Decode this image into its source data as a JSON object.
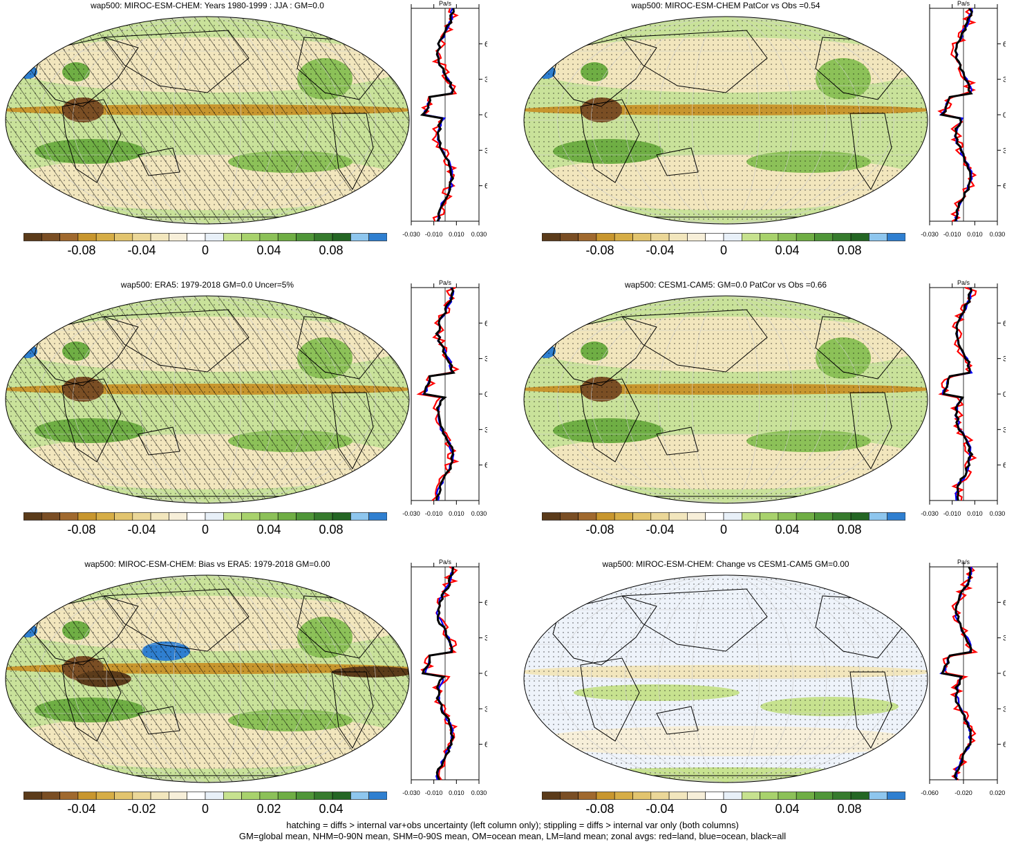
{
  "variable": "wap500",
  "panels": [
    {
      "title": "wap500: MIROC-ESM-CHEM: Years 1980-1999 : JJA : GM=0.0",
      "hatching": true,
      "cbar_labels": [
        "-0.08",
        "-0.04",
        "0",
        "0.04",
        "0.08"
      ],
      "zonal_unit": "Pa/s",
      "zonal_xticks": [
        "-0.030",
        "-0.010",
        "0.010",
        "0.030"
      ],
      "zonal_yticks": [
        "60N",
        "30N",
        "0",
        "30S",
        "60S"
      ]
    },
    {
      "title": "wap500: MIROC-ESM-CHEM PatCor vs Obs =0.54",
      "hatching": false,
      "cbar_labels": [
        "-0.08",
        "-0.04",
        "0",
        "0.04",
        "0.08"
      ],
      "zonal_unit": "Pa/s",
      "zonal_xticks": [
        "-0.030",
        "-0.010",
        "0.010",
        "0.030"
      ],
      "zonal_yticks": [
        "60N",
        "30N",
        "0",
        "30S",
        "60S"
      ]
    },
    {
      "title": "wap500: ERA5: 1979-2018 GM=0.0 Uncer=5%",
      "hatching": true,
      "cbar_labels": [
        "-0.08",
        "-0.04",
        "0",
        "0.04",
        "0.08"
      ],
      "zonal_unit": "Pa/s",
      "zonal_xticks": [
        "-0.030",
        "-0.010",
        "0.010",
        "0.030"
      ],
      "zonal_yticks": [
        "60N",
        "30N",
        "0",
        "30S",
        "60S"
      ]
    },
    {
      "title": "wap500: CESM1-CAM5: GM=0.0 PatCor vs Obs =0.66",
      "hatching": false,
      "cbar_labels": [
        "-0.08",
        "-0.04",
        "0",
        "0.04",
        "0.08"
      ],
      "zonal_unit": "Pa/s",
      "zonal_xticks": [
        "-0.030",
        "-0.010",
        "0.010",
        "0.030"
      ],
      "zonal_yticks": [
        "60N",
        "30N",
        "0",
        "30S",
        "60S"
      ]
    },
    {
      "title": "wap500: MIROC-ESM-CHEM: Bias vs ERA5: 1979-2018 GM=0.00",
      "hatching": true,
      "cbar_labels": [
        "-0.04",
        "-0.02",
        "0",
        "0.02",
        "0.04"
      ],
      "zonal_unit": "Pa/s",
      "zonal_xticks": [
        "-0.030",
        "-0.010",
        "0.010",
        "0.030"
      ],
      "zonal_yticks": [
        "60N",
        "30N",
        "0",
        "30S",
        "60S"
      ]
    },
    {
      "title": "wap500: MIROC-ESM-CHEM: Change vs CESM1-CAM5 GM=0.00",
      "hatching": false,
      "cbar_labels": [
        "-0.08",
        "-0.04",
        "0",
        "0.04",
        "0.08"
      ],
      "zonal_unit": "Pa/s",
      "zonal_xticks": [
        "-0.060",
        "-0.020",
        "0.020"
      ],
      "zonal_yticks": [
        "60N",
        "30N",
        "0",
        "30S",
        "60S"
      ]
    }
  ],
  "colorbar_colors": [
    "#5b3b1a",
    "#7a4e24",
    "#a0692e",
    "#c8962e",
    "#d6ad46",
    "#e2c46e",
    "#ebd798",
    "#f2e6bd",
    "#f7efd9",
    "#ffffff",
    "#e8f0f8",
    "#c7e28f",
    "#a8d26c",
    "#8cc158",
    "#6fae44",
    "#4f9638",
    "#367b2d",
    "#246624",
    "#8ec6ee",
    "#2f7fd0"
  ],
  "series_colors": {
    "land": "#ff0000",
    "ocean": "#0000ff",
    "all": "#000000"
  },
  "footer": {
    "line1": "hatching = diffs > internal var+obs uncertainty (left column only); stippling = diffs > internal var only (both columns)",
    "line2": "GM=global mean, NHM=0-90N mean, SHM=0-90S mean, OM=ocean mean, LM=land mean; zonal avgs: red=land, blue=ocean, black=all"
  }
}
